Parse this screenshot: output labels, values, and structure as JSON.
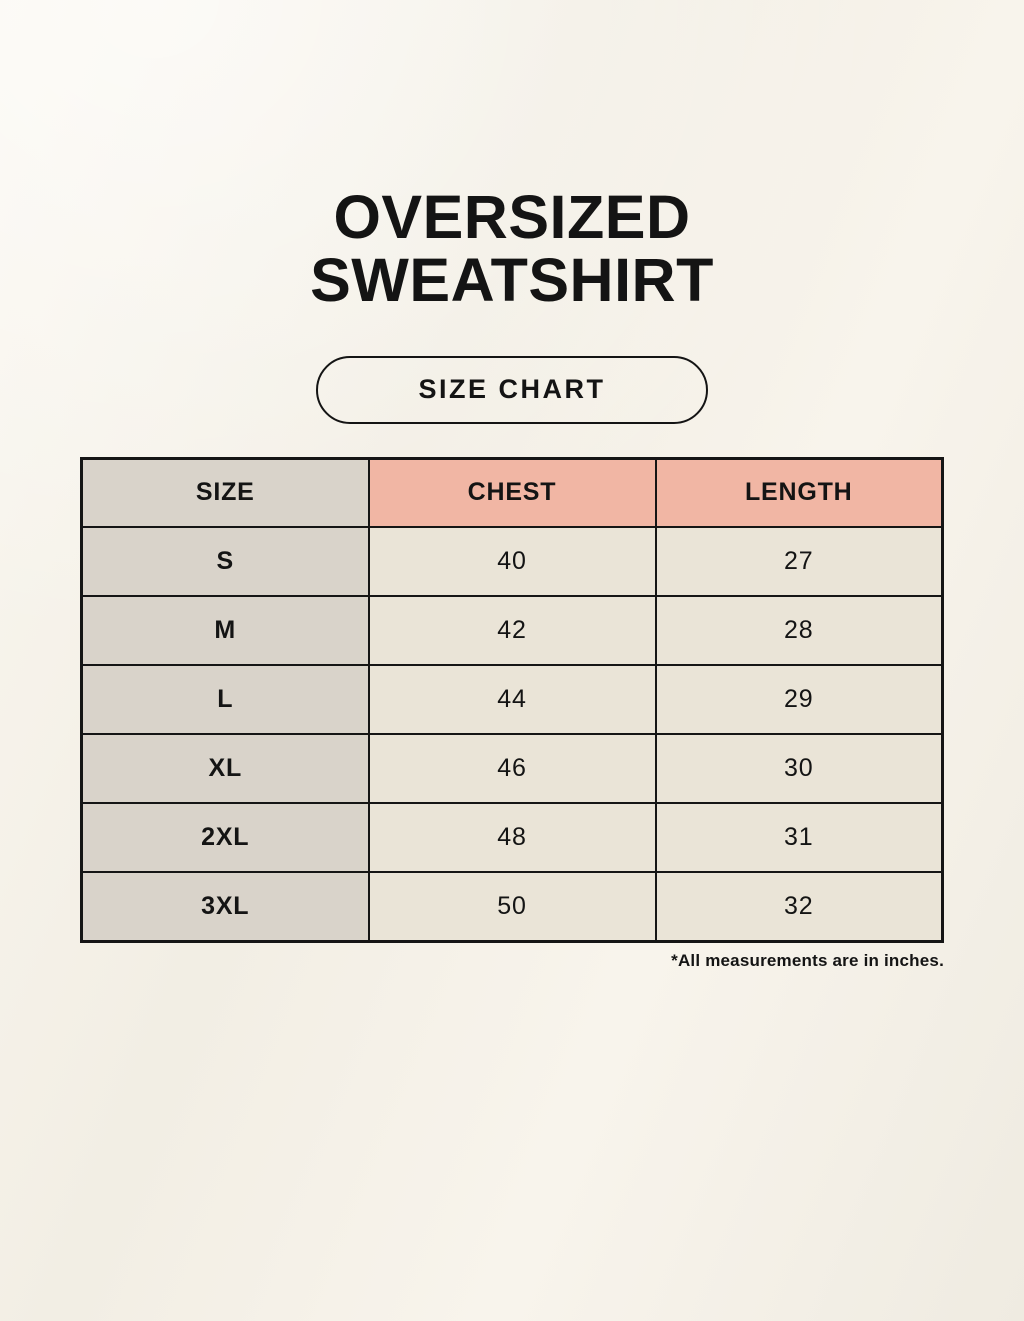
{
  "header": {
    "title_line1": "OVERSIZED",
    "title_line2": "SWEATSHIRT",
    "badge_label": "SIZE CHART"
  },
  "chart_data": {
    "type": "table",
    "title": "OVERSIZED SWEATSHIRT",
    "subtitle": "SIZE CHART",
    "columns": [
      "SIZE",
      "CHEST",
      "LENGTH"
    ],
    "rows": [
      [
        "S",
        40,
        27
      ],
      [
        "M",
        42,
        28
      ],
      [
        "L",
        44,
        29
      ],
      [
        "XL",
        46,
        30
      ],
      [
        "2XL",
        48,
        31
      ],
      [
        "3XL",
        50,
        32
      ]
    ],
    "units": "inches",
    "footnote": "*All measurements are in inches."
  },
  "colors": {
    "background": "#f5f1e8",
    "header_accent_pink": "#f1b6a4",
    "size_column_taupe": "#d9d3ca",
    "cell_cream": "#eae4d7",
    "table_border": "#151515",
    "text": "#141414"
  }
}
